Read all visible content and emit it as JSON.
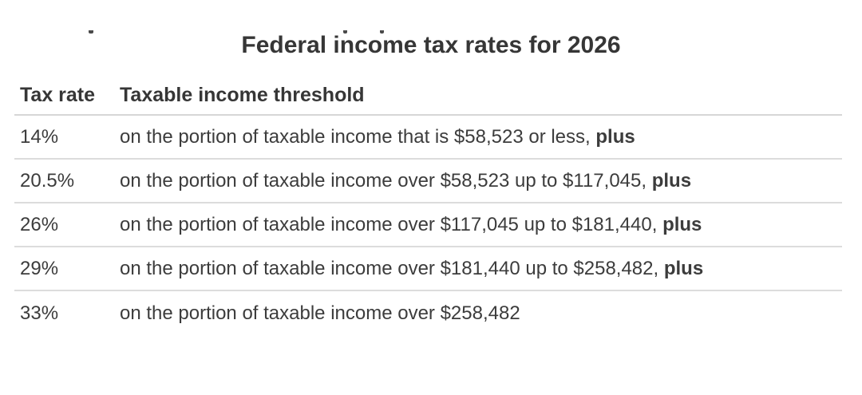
{
  "page": {
    "title": "Federal income tax rates for 2026"
  },
  "colors": {
    "text": "#3c3c3c",
    "heading": "#363636",
    "divider": "#dcdcdc",
    "background": "#ffffff"
  },
  "table": {
    "headers": [
      "Tax rate",
      "Taxable income threshold"
    ],
    "rows": [
      {
        "rate": "14%",
        "description": "on the portion of taxable income that is $58,523 or less,",
        "suffix": "plus"
      },
      {
        "rate": "20.5%",
        "description": "on the portion of taxable income over $58,523 up to $117,045,",
        "suffix": "plus"
      },
      {
        "rate": "26%",
        "description": "on the portion of taxable income over $117,045 up to $181,440,",
        "suffix": "plus"
      },
      {
        "rate": "29%",
        "description": "on the portion of taxable income over $181,440 up to $258,482,",
        "suffix": "plus"
      },
      {
        "rate": "33%",
        "description": "on the portion of taxable income over $258,482",
        "suffix": ""
      }
    ]
  }
}
